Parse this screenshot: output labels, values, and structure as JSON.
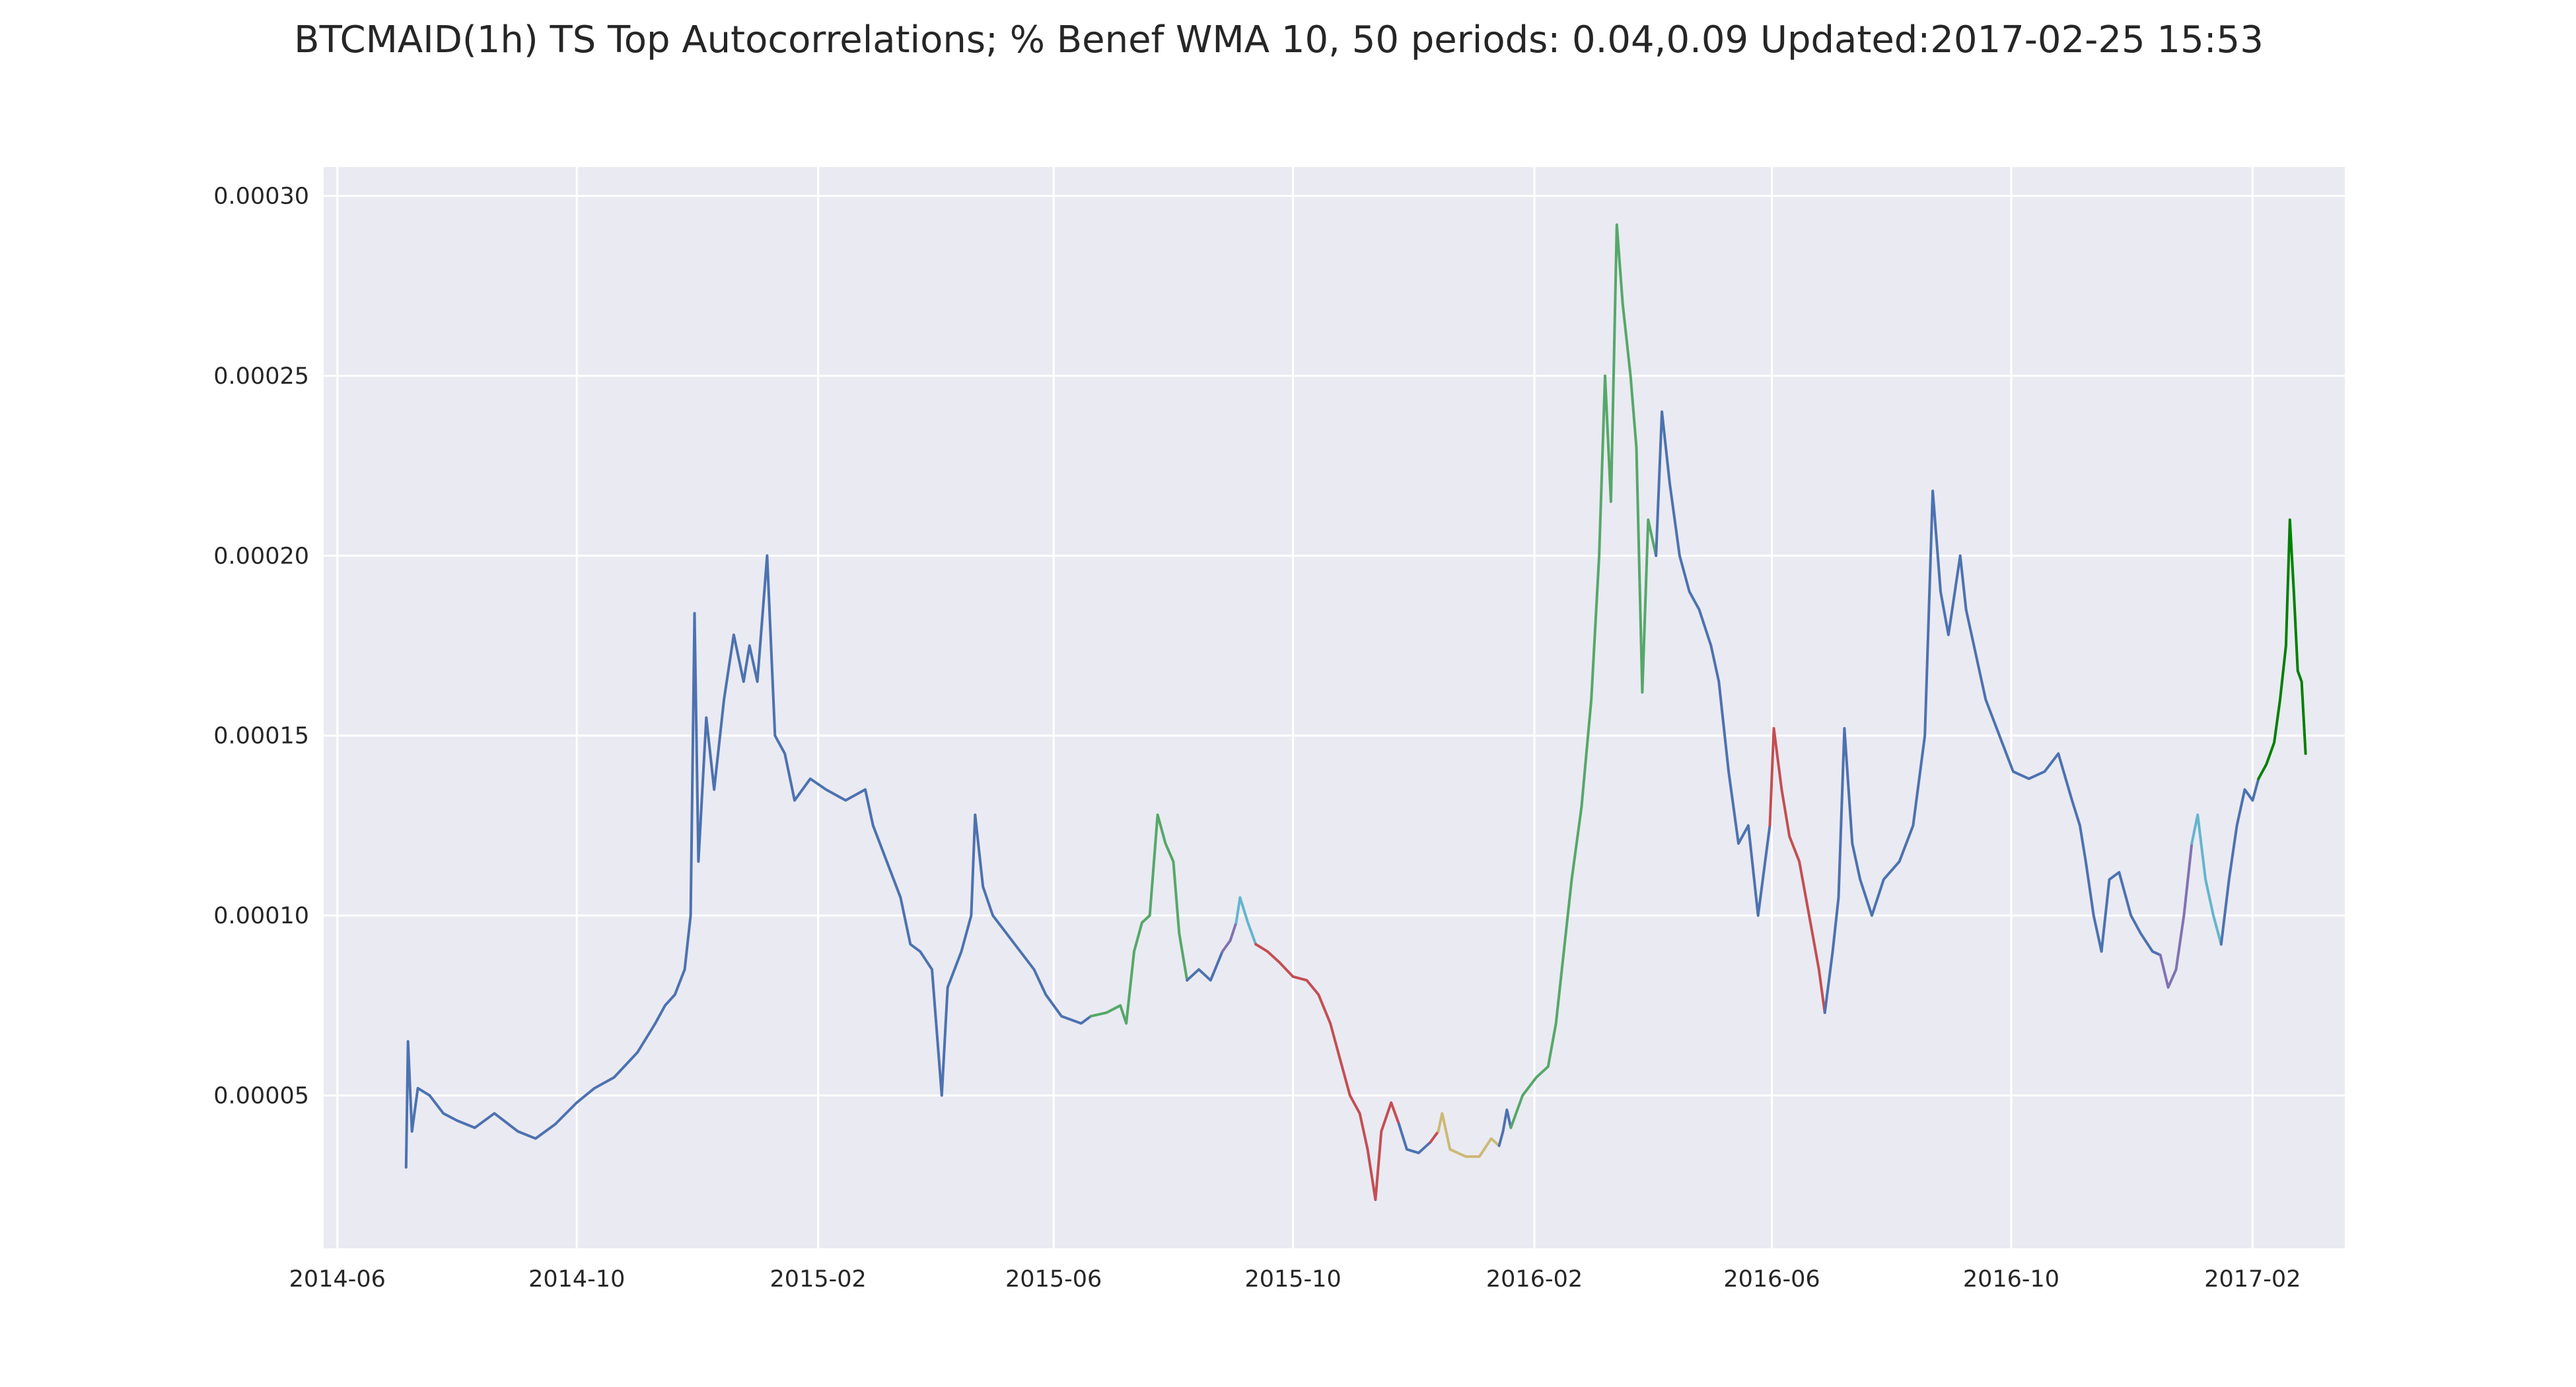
{
  "chart_data": {
    "type": "line",
    "title": "BTCMAID(1h) TS Top Autocorrelations; % Benef WMA 10, 50 periods: 0.04,0.09 Updated:2017-02-25 15:53",
    "xlabel": "",
    "ylabel": "",
    "x_axis_type": "date",
    "xlim": [
      "2014-05-25",
      "2017-03-20"
    ],
    "ylim": [
      7.5e-06,
      0.000308
    ],
    "grid": true,
    "legend": "none",
    "x_ticks": [
      "2014-06",
      "2014-10",
      "2015-02",
      "2015-06",
      "2015-10",
      "2016-02",
      "2016-06",
      "2016-10",
      "2017-02"
    ],
    "y_ticks": [
      "0.00005",
      "0.00010",
      "0.00015",
      "0.00020",
      "0.00025",
      "0.00030"
    ],
    "y_tick_values": [
      5e-05,
      0.0001,
      0.00015,
      0.0002,
      0.00025,
      0.0003
    ],
    "colors": {
      "blue": "#4c72b0",
      "green": "#55a868",
      "red": "#c44e52",
      "purple": "#8172b2",
      "cyan": "#64b5cd",
      "yellow": "#ccb974",
      "darkgreen": "#008000",
      "plot_bg": "#eaeaf2",
      "grid": "#ffffff"
    },
    "segments": [
      {
        "color": "#4c72b0",
        "points": [
          [
            "2014-07-06",
            3e-05
          ],
          [
            "2014-07-07",
            6.5e-05
          ],
          [
            "2014-07-09",
            4e-05
          ],
          [
            "2014-07-12",
            5.2e-05
          ],
          [
            "2014-07-18",
            5e-05
          ],
          [
            "2014-07-25",
            4.5e-05
          ],
          [
            "2014-08-01",
            4.3e-05
          ],
          [
            "2014-08-10",
            4.1e-05
          ],
          [
            "2014-08-20",
            4.5e-05
          ],
          [
            "2014-09-01",
            4e-05
          ],
          [
            "2014-09-10",
            3.8e-05
          ],
          [
            "2014-09-20",
            4.2e-05
          ],
          [
            "2014-10-01",
            4.8e-05
          ],
          [
            "2014-10-10",
            5.2e-05
          ],
          [
            "2014-10-20",
            5.5e-05
          ],
          [
            "2014-11-01",
            6.2e-05
          ],
          [
            "2014-11-10",
            7e-05
          ],
          [
            "2014-11-15",
            7.5e-05
          ],
          [
            "2014-11-20",
            7.8e-05
          ],
          [
            "2014-11-25",
            8.5e-05
          ],
          [
            "2014-11-28",
            0.0001
          ],
          [
            "2014-11-30",
            0.000184
          ],
          [
            "2014-12-02",
            0.000115
          ],
          [
            "2014-12-06",
            0.000155
          ],
          [
            "2014-12-10",
            0.000135
          ],
          [
            "2014-12-15",
            0.00016
          ],
          [
            "2014-12-20",
            0.000178
          ],
          [
            "2014-12-25",
            0.000165
          ],
          [
            "2014-12-28",
            0.000175
          ],
          [
            "2015-01-01",
            0.000165
          ],
          [
            "2015-01-06",
            0.0002
          ],
          [
            "2015-01-10",
            0.00015
          ],
          [
            "2015-01-15",
            0.000145
          ],
          [
            "2015-01-20",
            0.000132
          ],
          [
            "2015-01-28",
            0.000138
          ],
          [
            "2015-02-05",
            0.000135
          ],
          [
            "2015-02-15",
            0.000132
          ],
          [
            "2015-02-25",
            0.000135
          ],
          [
            "2015-03-01",
            0.000125
          ],
          [
            "2015-03-08",
            0.000115
          ],
          [
            "2015-03-15",
            0.000105
          ],
          [
            "2015-03-20",
            9.2e-05
          ],
          [
            "2015-03-25",
            9e-05
          ],
          [
            "2015-03-31",
            8.5e-05
          ],
          [
            "2015-04-05",
            5e-05
          ],
          [
            "2015-04-08",
            8e-05
          ],
          [
            "2015-04-15",
            9e-05
          ],
          [
            "2015-04-20",
            0.0001
          ],
          [
            "2015-04-22",
            0.000128
          ],
          [
            "2015-04-26",
            0.000108
          ],
          [
            "2015-05-01",
            0.0001
          ],
          [
            "2015-05-08",
            9.5e-05
          ],
          [
            "2015-05-15",
            9e-05
          ],
          [
            "2015-05-22",
            8.5e-05
          ],
          [
            "2015-05-28",
            7.8e-05
          ],
          [
            "2015-06-05",
            7.2e-05
          ],
          [
            "2015-06-15",
            7e-05
          ],
          [
            "2015-06-20",
            7.2e-05
          ]
        ]
      },
      {
        "color": "#55a868",
        "points": [
          [
            "2015-06-20",
            7.2e-05
          ],
          [
            "2015-06-28",
            7.3e-05
          ],
          [
            "2015-07-05",
            7.5e-05
          ],
          [
            "2015-07-08",
            7e-05
          ],
          [
            "2015-07-12",
            9e-05
          ],
          [
            "2015-07-16",
            9.8e-05
          ],
          [
            "2015-07-20",
            0.0001
          ],
          [
            "2015-07-24",
            0.000128
          ],
          [
            "2015-07-28",
            0.00012
          ],
          [
            "2015-08-01",
            0.000115
          ],
          [
            "2015-08-04",
            9.5e-05
          ],
          [
            "2015-08-08",
            8.2e-05
          ]
        ]
      },
      {
        "color": "#4c72b0",
        "points": [
          [
            "2015-08-08",
            8.2e-05
          ],
          [
            "2015-08-14",
            8.5e-05
          ],
          [
            "2015-08-20",
            8.2e-05
          ],
          [
            "2015-08-26",
            9e-05
          ]
        ]
      },
      {
        "color": "#8172b2",
        "points": [
          [
            "2015-08-26",
            9e-05
          ],
          [
            "2015-08-30",
            9.3e-05
          ],
          [
            "2015-09-02",
            9.8e-05
          ]
        ]
      },
      {
        "color": "#64b5cd",
        "points": [
          [
            "2015-09-02",
            9.8e-05
          ],
          [
            "2015-09-04",
            0.000105
          ],
          [
            "2015-09-08",
            9.8e-05
          ],
          [
            "2015-09-12",
            9.2e-05
          ]
        ]
      },
      {
        "color": "#c44e52",
        "points": [
          [
            "2015-09-12",
            9.2e-05
          ],
          [
            "2015-09-18",
            9e-05
          ],
          [
            "2015-09-24",
            8.7e-05
          ],
          [
            "2015-10-01",
            8.3e-05
          ],
          [
            "2015-10-08",
            8.2e-05
          ],
          [
            "2015-10-14",
            7.8e-05
          ],
          [
            "2015-10-20",
            7e-05
          ],
          [
            "2015-10-25",
            6e-05
          ],
          [
            "2015-10-30",
            5e-05
          ],
          [
            "2015-11-04",
            4.5e-05
          ],
          [
            "2015-11-08",
            3.5e-05
          ],
          [
            "2015-11-12",
            2.1e-05
          ],
          [
            "2015-11-15",
            4e-05
          ],
          [
            "2015-11-20",
            4.8e-05
          ],
          [
            "2015-11-24",
            4.2e-05
          ]
        ]
      },
      {
        "color": "#4c72b0",
        "points": [
          [
            "2015-11-24",
            4.2e-05
          ],
          [
            "2015-11-28",
            3.5e-05
          ],
          [
            "2015-12-04",
            3.4e-05
          ],
          [
            "2015-12-10",
            3.7e-05
          ]
        ]
      },
      {
        "color": "#c44e52",
        "points": [
          [
            "2015-12-10",
            3.7e-05
          ],
          [
            "2015-12-14",
            4e-05
          ]
        ]
      },
      {
        "color": "#ccb974",
        "points": [
          [
            "2015-12-14",
            4e-05
          ],
          [
            "2015-12-16",
            4.5e-05
          ],
          [
            "2015-12-20",
            3.5e-05
          ],
          [
            "2015-12-28",
            3.3e-05
          ],
          [
            "2016-01-04",
            3.3e-05
          ],
          [
            "2016-01-10",
            3.8e-05
          ],
          [
            "2016-01-14",
            3.6e-05
          ]
        ]
      },
      {
        "color": "#4c72b0",
        "points": [
          [
            "2016-01-14",
            3.6e-05
          ],
          [
            "2016-01-16",
            4e-05
          ],
          [
            "2016-01-18",
            4.6e-05
          ],
          [
            "2016-01-20",
            4.1e-05
          ]
        ]
      },
      {
        "color": "#55a868",
        "points": [
          [
            "2016-01-20",
            4.1e-05
          ],
          [
            "2016-01-26",
            5e-05
          ],
          [
            "2016-02-02",
            5.5e-05
          ],
          [
            "2016-02-08",
            5.8e-05
          ],
          [
            "2016-02-12",
            7e-05
          ],
          [
            "2016-02-16",
            9e-05
          ],
          [
            "2016-02-20",
            0.00011
          ],
          [
            "2016-02-25",
            0.00013
          ],
          [
            "2016-03-01",
            0.00016
          ],
          [
            "2016-03-05",
            0.0002
          ],
          [
            "2016-03-08",
            0.00025
          ],
          [
            "2016-03-11",
            0.000215
          ],
          [
            "2016-03-14",
            0.000292
          ],
          [
            "2016-03-17",
            0.00027
          ],
          [
            "2016-03-21",
            0.00025
          ],
          [
            "2016-03-24",
            0.00023
          ],
          [
            "2016-03-27",
            0.000162
          ],
          [
            "2016-03-30",
            0.00021
          ],
          [
            "2016-04-03",
            0.0002
          ]
        ]
      },
      {
        "color": "#4c72b0",
        "points": [
          [
            "2016-04-03",
            0.0002
          ],
          [
            "2016-04-06",
            0.00024
          ],
          [
            "2016-04-10",
            0.00022
          ],
          [
            "2016-04-15",
            0.0002
          ],
          [
            "2016-04-20",
            0.00019
          ],
          [
            "2016-04-25",
            0.000185
          ],
          [
            "2016-05-01",
            0.000175
          ],
          [
            "2016-05-05",
            0.000165
          ],
          [
            "2016-05-10",
            0.00014
          ],
          [
            "2016-05-15",
            0.00012
          ],
          [
            "2016-05-20",
            0.000125
          ],
          [
            "2016-05-25",
            0.0001
          ],
          [
            "2016-05-31",
            0.000125
          ]
        ]
      },
      {
        "color": "#c44e52",
        "points": [
          [
            "2016-05-31",
            0.000125
          ],
          [
            "2016-06-02",
            0.000152
          ],
          [
            "2016-06-06",
            0.000135
          ],
          [
            "2016-06-10",
            0.000122
          ],
          [
            "2016-06-15",
            0.000115
          ],
          [
            "2016-06-20",
            0.0001
          ],
          [
            "2016-06-25",
            8.5e-05
          ],
          [
            "2016-06-28",
            7.3e-05
          ]
        ]
      },
      {
        "color": "#4c72b0",
        "points": [
          [
            "2016-06-28",
            7.3e-05
          ],
          [
            "2016-07-02",
            9e-05
          ],
          [
            "2016-07-05",
            0.000105
          ],
          [
            "2016-07-08",
            0.000152
          ],
          [
            "2016-07-12",
            0.00012
          ],
          [
            "2016-07-16",
            0.00011
          ],
          [
            "2016-07-22",
            0.0001
          ],
          [
            "2016-07-28",
            0.00011
          ],
          [
            "2016-08-05",
            0.000115
          ],
          [
            "2016-08-12",
            0.000125
          ],
          [
            "2016-08-18",
            0.00015
          ],
          [
            "2016-08-22",
            0.000218
          ],
          [
            "2016-08-26",
            0.00019
          ],
          [
            "2016-08-30",
            0.000178
          ],
          [
            "2016-09-05",
            0.0002
          ],
          [
            "2016-09-08",
            0.000185
          ],
          [
            "2016-09-12",
            0.000175
          ],
          [
            "2016-09-18",
            0.00016
          ],
          [
            "2016-09-25",
            0.00015
          ],
          [
            "2016-10-02",
            0.00014
          ],
          [
            "2016-10-10",
            0.000138
          ],
          [
            "2016-10-18",
            0.00014
          ],
          [
            "2016-10-25",
            0.000145
          ],
          [
            "2016-11-01",
            0.000132
          ],
          [
            "2016-11-05",
            0.000125
          ],
          [
            "2016-11-08",
            0.000115
          ],
          [
            "2016-11-12",
            0.0001
          ],
          [
            "2016-11-16",
            9e-05
          ],
          [
            "2016-11-20",
            0.00011
          ],
          [
            "2016-11-25",
            0.000112
          ],
          [
            "2016-12-01",
            0.0001
          ],
          [
            "2016-12-06",
            9.5e-05
          ],
          [
            "2016-12-12",
            9e-05
          ],
          [
            "2016-12-16",
            8.9e-05
          ]
        ]
      },
      {
        "color": "#8172b2",
        "points": [
          [
            "2016-12-16",
            8.9e-05
          ],
          [
            "2016-12-20",
            8e-05
          ],
          [
            "2016-12-24",
            8.5e-05
          ],
          [
            "2016-12-28",
            0.0001
          ],
          [
            "2017-01-01",
            0.00012
          ]
        ]
      },
      {
        "color": "#64b5cd",
        "points": [
          [
            "2017-01-01",
            0.00012
          ],
          [
            "2017-01-04",
            0.000128
          ],
          [
            "2017-01-08",
            0.00011
          ],
          [
            "2017-01-12",
            0.0001
          ],
          [
            "2017-01-16",
            9.2e-05
          ]
        ]
      },
      {
        "color": "#4c72b0",
        "points": [
          [
            "2017-01-16",
            9.2e-05
          ],
          [
            "2017-01-20",
            0.00011
          ],
          [
            "2017-01-24",
            0.000125
          ],
          [
            "2017-01-28",
            0.000135
          ],
          [
            "2017-02-01",
            0.000132
          ],
          [
            "2017-02-04",
            0.000138
          ]
        ]
      },
      {
        "color": "#008000",
        "points": [
          [
            "2017-02-04",
            0.000138
          ],
          [
            "2017-02-08",
            0.000142
          ],
          [
            "2017-02-12",
            0.000148
          ],
          [
            "2017-02-15",
            0.00016
          ],
          [
            "2017-02-18",
            0.000175
          ],
          [
            "2017-02-20",
            0.00021
          ],
          [
            "2017-02-22",
            0.00019
          ],
          [
            "2017-02-24",
            0.000168
          ],
          [
            "2017-02-26",
            0.000165
          ],
          [
            "2017-02-28",
            0.000145
          ]
        ]
      }
    ]
  }
}
